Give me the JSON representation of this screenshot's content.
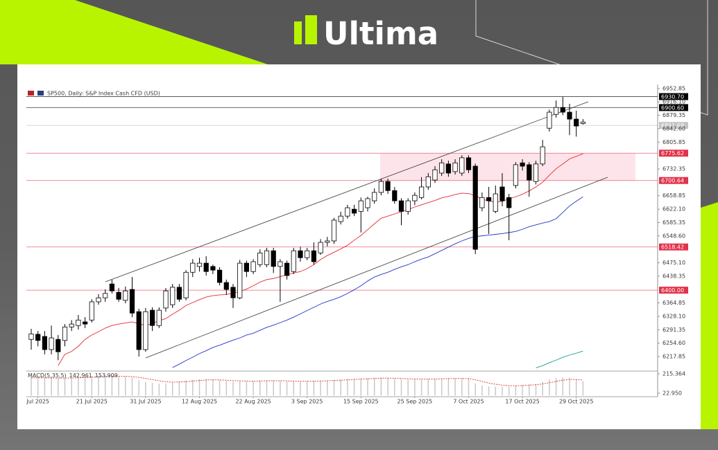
{
  "brand": "Ultima",
  "chart_data": [
    {
      "type": "candlestick",
      "title": "SP500, Daily:  S&P Index Cash CFD (USD)",
      "categories": [
        null,
        "Jul 2025",
        null,
        null,
        null,
        null,
        null,
        null,
        null,
        "21 Jul 2025",
        null,
        null,
        null,
        null,
        null,
        null,
        null,
        "31 Jul 2025",
        null,
        null,
        null,
        null,
        null,
        null,
        null,
        "12 Aug 2025",
        null,
        null,
        null,
        null,
        null,
        null,
        null,
        "22 Aug 2025",
        null,
        null,
        null,
        null,
        null,
        null,
        null,
        "3 Sep 2025",
        null,
        null,
        null,
        null,
        null,
        null,
        null,
        "15 Sep 2025",
        null,
        null,
        null,
        null,
        null,
        null,
        null,
        "25 Sep 2025",
        null,
        null,
        null,
        null,
        null,
        null,
        null,
        "7 Oct 2025",
        null,
        null,
        null,
        null,
        null,
        null,
        null,
        "17 Oct 2025",
        null,
        null,
        null,
        null,
        null,
        null,
        null,
        "29 Oct 2025",
        null
      ],
      "open": [
        6265,
        6279,
        6273,
        6237,
        6265,
        6262,
        6299,
        6303,
        6313,
        6318,
        6368,
        6379,
        6417,
        6394,
        6372,
        6402,
        6341,
        6237,
        6345,
        6303,
        6351,
        6360,
        6408,
        6379,
        6449,
        6465,
        6474,
        6465,
        6455,
        6421,
        6408,
        6379,
        6474,
        6451,
        6470,
        6470,
        6508,
        6465,
        6474,
        6451,
        6508,
        6489,
        6508,
        6502,
        6531,
        6535,
        6588,
        6603,
        6622,
        6616,
        6626,
        6645,
        6668,
        6698,
        6673,
        6645,
        6616,
        6645,
        6654,
        6683,
        6702,
        6721,
        6746,
        6725,
        6721,
        6763,
        6740,
        6626,
        6654,
        6616,
        6683,
        6654,
        6687,
        6749,
        6744,
        6698,
        6746,
        6844,
        6882,
        6901,
        6888,
        6869,
        6857
      ],
      "high": [
        6294,
        6288,
        6288,
        6303,
        6277,
        6307,
        6318,
        6332,
        6326,
        6375,
        6389,
        6402,
        6429,
        6406,
        6410,
        6436,
        6349,
        6351,
        6353,
        6353,
        6406,
        6417,
        6417,
        6455,
        6485,
        6489,
        6493,
        6470,
        6463,
        6429,
        6417,
        6483,
        6481,
        6485,
        6512,
        6516,
        6516,
        6485,
        6481,
        6516,
        6519,
        6516,
        6531,
        6540,
        6546,
        6598,
        6615,
        6634,
        6634,
        6654,
        6656,
        6679,
        6706,
        6706,
        6683,
        6652,
        6652,
        6668,
        6710,
        6721,
        6740,
        6759,
        6755,
        6759,
        6770,
        6770,
        6747,
        6668,
        6683,
        6687,
        6721,
        6664,
        6751,
        6759,
        6751,
        6755,
        6812,
        6895,
        6920,
        6930,
        6911,
        6892,
        6869
      ],
      "low": [
        6237,
        6246,
        6224,
        6224,
        6208,
        6246,
        6288,
        6292,
        6296,
        6311,
        6360,
        6368,
        6391,
        6368,
        6364,
        6326,
        6218,
        6231,
        6288,
        6296,
        6341,
        6351,
        6368,
        6372,
        6436,
        6451,
        6440,
        6444,
        6413,
        6387,
        6351,
        6375,
        6436,
        6444,
        6463,
        6463,
        6447,
        6368,
        6429,
        6444,
        6478,
        6482,
        6470,
        6497,
        6520,
        6527,
        6580,
        6596,
        6603,
        6558,
        6616,
        6637,
        6660,
        6664,
        6637,
        6578,
        6607,
        6633,
        6649,
        6675,
        6694,
        6713,
        6711,
        6717,
        6713,
        6721,
        6499,
        6616,
        6554,
        6611,
        6630,
        6537,
        6679,
        6728,
        6656,
        6690,
        6740,
        6835,
        6873,
        6880,
        6825,
        6821,
        6854
      ],
      "close": [
        6280,
        6262,
        6237,
        6269,
        6231,
        6299,
        6307,
        6318,
        6307,
        6368,
        6379,
        6391,
        6398,
        6375,
        6398,
        6337,
        6237,
        6341,
        6303,
        6345,
        6398,
        6408,
        6375,
        6449,
        6474,
        6474,
        6451,
        6455,
        6421,
        6402,
        6379,
        6474,
        6451,
        6478,
        6502,
        6508,
        6465,
        6478,
        6440,
        6508,
        6489,
        6508,
        6478,
        6531,
        6535,
        6592,
        6603,
        6626,
        6611,
        6645,
        6651,
        6668,
        6698,
        6673,
        6645,
        6616,
        6645,
        6660,
        6683,
        6711,
        6730,
        6749,
        6721,
        6749,
        6763,
        6730,
        6512,
        6654,
        6645,
        6664,
        6645,
        6626,
        6744,
        6740,
        6702,
        6746,
        6793,
        6888,
        6901,
        6888,
        6869,
        6850,
        6861
      ],
      "up_color": "#ffffff",
      "down_color": "#000000",
      "series": [
        {
          "color": "#e8262f",
          "values": [
            null,
            null,
            null,
            null,
            6193,
            6224,
            6232,
            6246,
            6265,
            6277,
            6286,
            6296,
            6303,
            6307,
            6310,
            6313,
            6308,
            6303,
            6309,
            6316,
            6322,
            6334,
            6345,
            6358,
            6366,
            6374,
            6381,
            6385,
            6387,
            6388,
            6392,
            6396,
            6403,
            6412,
            6422,
            6429,
            6432,
            6437,
            6442,
            6447,
            6451,
            6459,
            6470,
            6484,
            6495,
            6504,
            6513,
            6523,
            6537,
            6550,
            6566,
            6582,
            6597,
            6603,
            6609,
            6615,
            6621,
            6628,
            6634,
            6640,
            6646,
            6653,
            6657,
            6662,
            6666,
            6665,
            6659,
            6650,
            6644,
            6642,
            6643,
            6651,
            6656,
            6663,
            6672,
            6683,
            6696,
            6715,
            6733,
            6746,
            6760,
            6767,
            6774
          ]
        },
        {
          "color": "#1e35c8",
          "values": [
            null,
            null,
            null,
            null,
            null,
            null,
            null,
            null,
            null,
            null,
            null,
            null,
            null,
            null,
            null,
            null,
            null,
            null,
            null,
            null,
            null,
            6188,
            6197,
            6207,
            6216,
            6226,
            6234,
            6243,
            6249,
            6256,
            6263,
            6269,
            6277,
            6282,
            6290,
            6298,
            6304,
            6311,
            6318,
            6326,
            6335,
            6344,
            6353,
            6362,
            6369,
            6375,
            6382,
            6391,
            6401,
            6412,
            6425,
            6436,
            6443,
            6449,
            6457,
            6464,
            6470,
            6478,
            6485,
            6491,
            6500,
            6509,
            6518,
            6527,
            6535,
            6542,
            6547,
            6549,
            6551,
            6553,
            6555,
            6558,
            6561,
            6567,
            6574,
            6579,
            6584,
            6588,
            6596,
            6613,
            6631,
            6644,
            6656
          ]
        },
        {
          "color": "#1a9c8c",
          "values": [
            null,
            null,
            null,
            null,
            null,
            null,
            null,
            null,
            null,
            null,
            null,
            null,
            null,
            null,
            null,
            null,
            null,
            null,
            null,
            null,
            null,
            null,
            null,
            null,
            null,
            null,
            null,
            null,
            null,
            null,
            null,
            null,
            null,
            null,
            null,
            null,
            null,
            null,
            null,
            null,
            null,
            null,
            null,
            null,
            null,
            null,
            null,
            null,
            null,
            null,
            null,
            null,
            null,
            null,
            null,
            null,
            null,
            null,
            null,
            null,
            null,
            null,
            null,
            null,
            null,
            null,
            null,
            null,
            null,
            null,
            null,
            null,
            null,
            null,
            null,
            6187,
            6193,
            6201,
            6208,
            6216,
            6222,
            6227,
            6233
          ]
        }
      ],
      "levels": [
        {
          "value": 6930.7,
          "label": "6930.70",
          "color": "#000000"
        },
        {
          "value": 6900.6,
          "label": "6900.60",
          "color": "#000000"
        },
        {
          "value": 6851.69,
          "color": "#c4c4c4"
        },
        {
          "value": 6775.62,
          "label": "6775.62",
          "color": "#e3324a"
        },
        {
          "value": 6700.64,
          "label": "6700.64",
          "color": "#e3324a"
        },
        {
          "value": 6518.42,
          "label": "6518.42",
          "color": "#e3324a"
        },
        {
          "value": 6400,
          "label": "6400.00",
          "color": "#e3324a"
        }
      ],
      "zone_color": "#fde4ea",
      "ylim": [
        6180,
        6964
      ],
      "yticks": [
        6952.85,
        {
          "value": 6916.1,
          "label": "6916.10"
        },
        6879.35,
        {
          "value": 6842.6,
          "label": "6842.60"
        },
        6805.85,
        6732.35,
        6658.85,
        {
          "value": 6622.1,
          "label": "6622.10"
        },
        6585.35,
        {
          "value": 6548.6,
          "label": "6548.60"
        },
        {
          "value": 6475.1,
          "label": "6475.10"
        },
        6438.35,
        6364.85,
        {
          "value": 6328.1,
          "label": "6328.10"
        },
        6291.35,
        {
          "value": 6254.6,
          "label": "6254.60"
        },
        6217.85
      ]
    },
    {
      "type": "macd",
      "title": "MACD(5,35,5)",
      "series": [
        {
          "color": "#c8c8c8",
          "values": [
            180,
            178,
            170,
            175,
            168,
            172,
            176,
            182,
            185,
            190,
            195,
            198,
            196,
            190,
            188,
            180,
            150,
            135,
            125,
            118,
            120,
            130,
            140,
            150,
            158,
            162,
            165,
            160,
            152,
            145,
            138,
            142,
            140,
            142,
            148,
            152,
            150,
            145,
            140,
            138,
            140,
            142,
            145,
            148,
            150,
            155,
            160,
            165,
            168,
            170,
            172,
            175,
            180,
            176,
            168,
            160,
            158,
            160,
            162,
            165,
            168,
            170,
            172,
            170,
            168,
            166,
            120,
            100,
            90,
            88,
            85,
            86,
            100,
            105,
            110,
            115,
            135,
            160,
            175,
            180,
            178,
            160,
            142.961
          ]
        },
        {
          "color": "#e0302a",
          "values": [
            175,
            176,
            175,
            174,
            173,
            173,
            174,
            176,
            179,
            182,
            186,
            189,
            191,
            191,
            190,
            188,
            180,
            170,
            158,
            146,
            137,
            133,
            134,
            138,
            143,
            149,
            154,
            156,
            155,
            152,
            148,
            146,
            144,
            143,
            144,
            146,
            147,
            147,
            145,
            143,
            142,
            142,
            143,
            144,
            146,
            149,
            152,
            156,
            160,
            163,
            166,
            169,
            172,
            173,
            172,
            169,
            166,
            164,
            163,
            163,
            164,
            166,
            168,
            169,
            169,
            168,
            157,
            140,
            124,
            112,
            103,
            97,
            97,
            99,
            103,
            107,
            115,
            127,
            140,
            152,
            160,
            159,
            153.909
          ]
        }
      ],
      "ylim": [
        -12,
        236
      ],
      "yticks": [
        215.364,
        {
          "value": 22.95,
          "label": "22.950"
        }
      ]
    }
  ]
}
